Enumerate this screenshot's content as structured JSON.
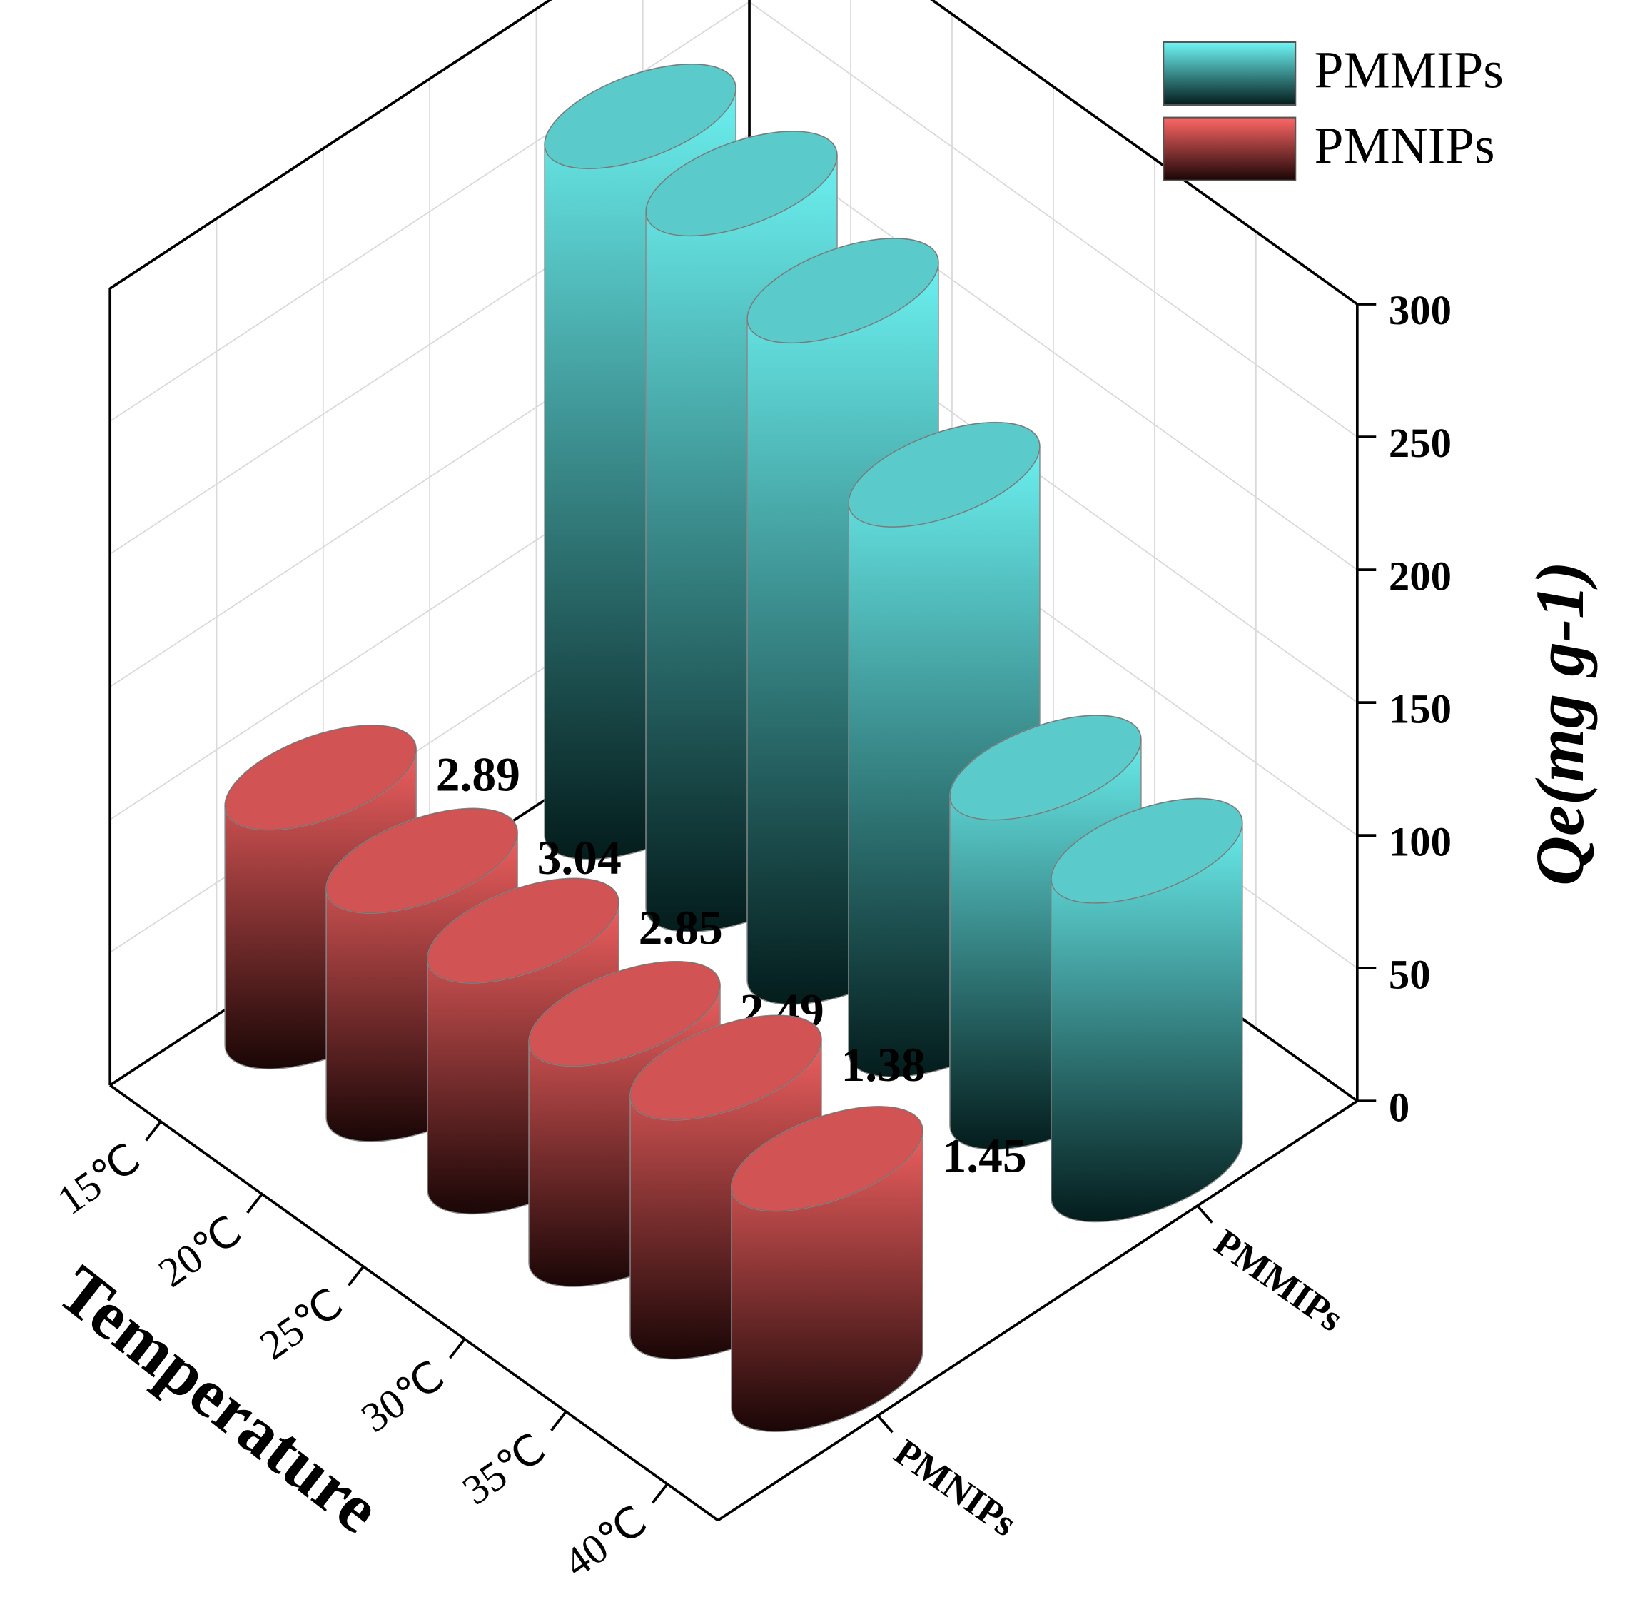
{
  "chart_data": {
    "type": "bar3d",
    "categories": [
      "15℃",
      "20℃",
      "25℃",
      "30℃",
      "35℃",
      "40℃"
    ],
    "series": [
      {
        "name": "PMMIPs",
        "color": "#6ff7f7",
        "values": [
          260,
          262,
          249,
          207,
          124,
          120
        ]
      },
      {
        "name": "PMNIPs",
        "color": "#ff6666",
        "values": [
          90,
          86,
          87,
          83,
          90,
          83
        ]
      }
    ],
    "annotations": [
      "2.89",
      "3.04",
      "2.85",
      "2.49",
      "1.38",
      "1.45"
    ],
    "x_label": "Temperature",
    "z_label": "Qe(mg g-1)",
    "zlim": [
      0,
      300
    ],
    "zticks": [
      0,
      50,
      100,
      150,
      200,
      250,
      300
    ],
    "grid": true,
    "legend": "top-right"
  }
}
